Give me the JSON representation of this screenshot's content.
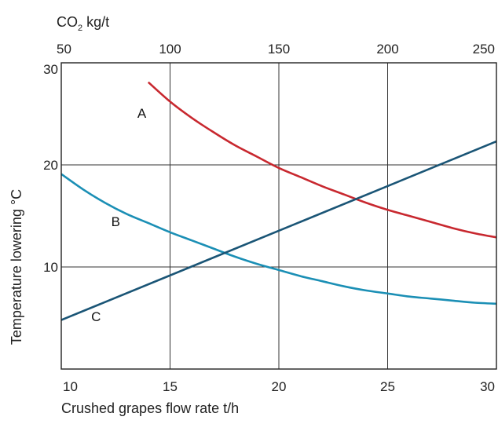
{
  "chart_data": {
    "type": "line",
    "title": "",
    "xlabel": "Crushed grapes flow rate t/h",
    "ylabel": "Temperature lowering °C",
    "x2label": {
      "main": "CO",
      "sub": "2",
      "rest": " kg/t"
    },
    "xlim": [
      10,
      30
    ],
    "ylim": [
      0,
      30
    ],
    "x2lim": [
      50,
      250
    ],
    "x_ticks": [
      "10",
      "15",
      "20",
      "25",
      "30"
    ],
    "y_ticks": [
      "10",
      "20",
      "30"
    ],
    "x2_ticks": [
      "50",
      "100",
      "150",
      "200",
      "250"
    ],
    "grid": true,
    "series": [
      {
        "name": "A",
        "color": "#c8282f",
        "x": [
          14.0,
          15.0,
          16.0,
          17.0,
          18.0,
          19.0,
          20.0,
          21.0,
          22.0,
          23.0,
          24.0,
          25.0,
          26.0,
          27.0,
          28.0,
          29.0,
          30.0
        ],
        "y": [
          28.1,
          26.2,
          24.6,
          23.2,
          21.9,
          20.8,
          19.7,
          18.8,
          17.9,
          17.1,
          16.3,
          15.6,
          15.0,
          14.4,
          13.8,
          13.3,
          12.9
        ]
      },
      {
        "name": "B",
        "color": "#1b8fb5",
        "x": [
          10.0,
          11.0,
          12.0,
          13.0,
          14.0,
          15.0,
          16.0,
          17.0,
          18.0,
          19.0,
          20.0,
          21.0,
          22.0,
          23.0,
          24.0,
          25.0,
          26.0,
          27.0,
          28.0,
          29.0,
          30.0
        ],
        "y": [
          19.1,
          17.6,
          16.3,
          15.2,
          14.3,
          13.4,
          12.6,
          11.8,
          11.0,
          10.3,
          9.7,
          9.1,
          8.6,
          8.1,
          7.7,
          7.4,
          7.1,
          6.9,
          6.7,
          6.5,
          6.4
        ]
      },
      {
        "name": "C",
        "color": "#1a5576",
        "x": [
          10.0,
          30.0
        ],
        "y": [
          4.8,
          22.3
        ]
      }
    ],
    "labels": [
      {
        "text": "A",
        "x": 13.7,
        "y": 24.6
      },
      {
        "text": "B",
        "x": 12.5,
        "y": 14.0
      },
      {
        "text": "C",
        "x": 11.6,
        "y": 4.7
      }
    ]
  }
}
